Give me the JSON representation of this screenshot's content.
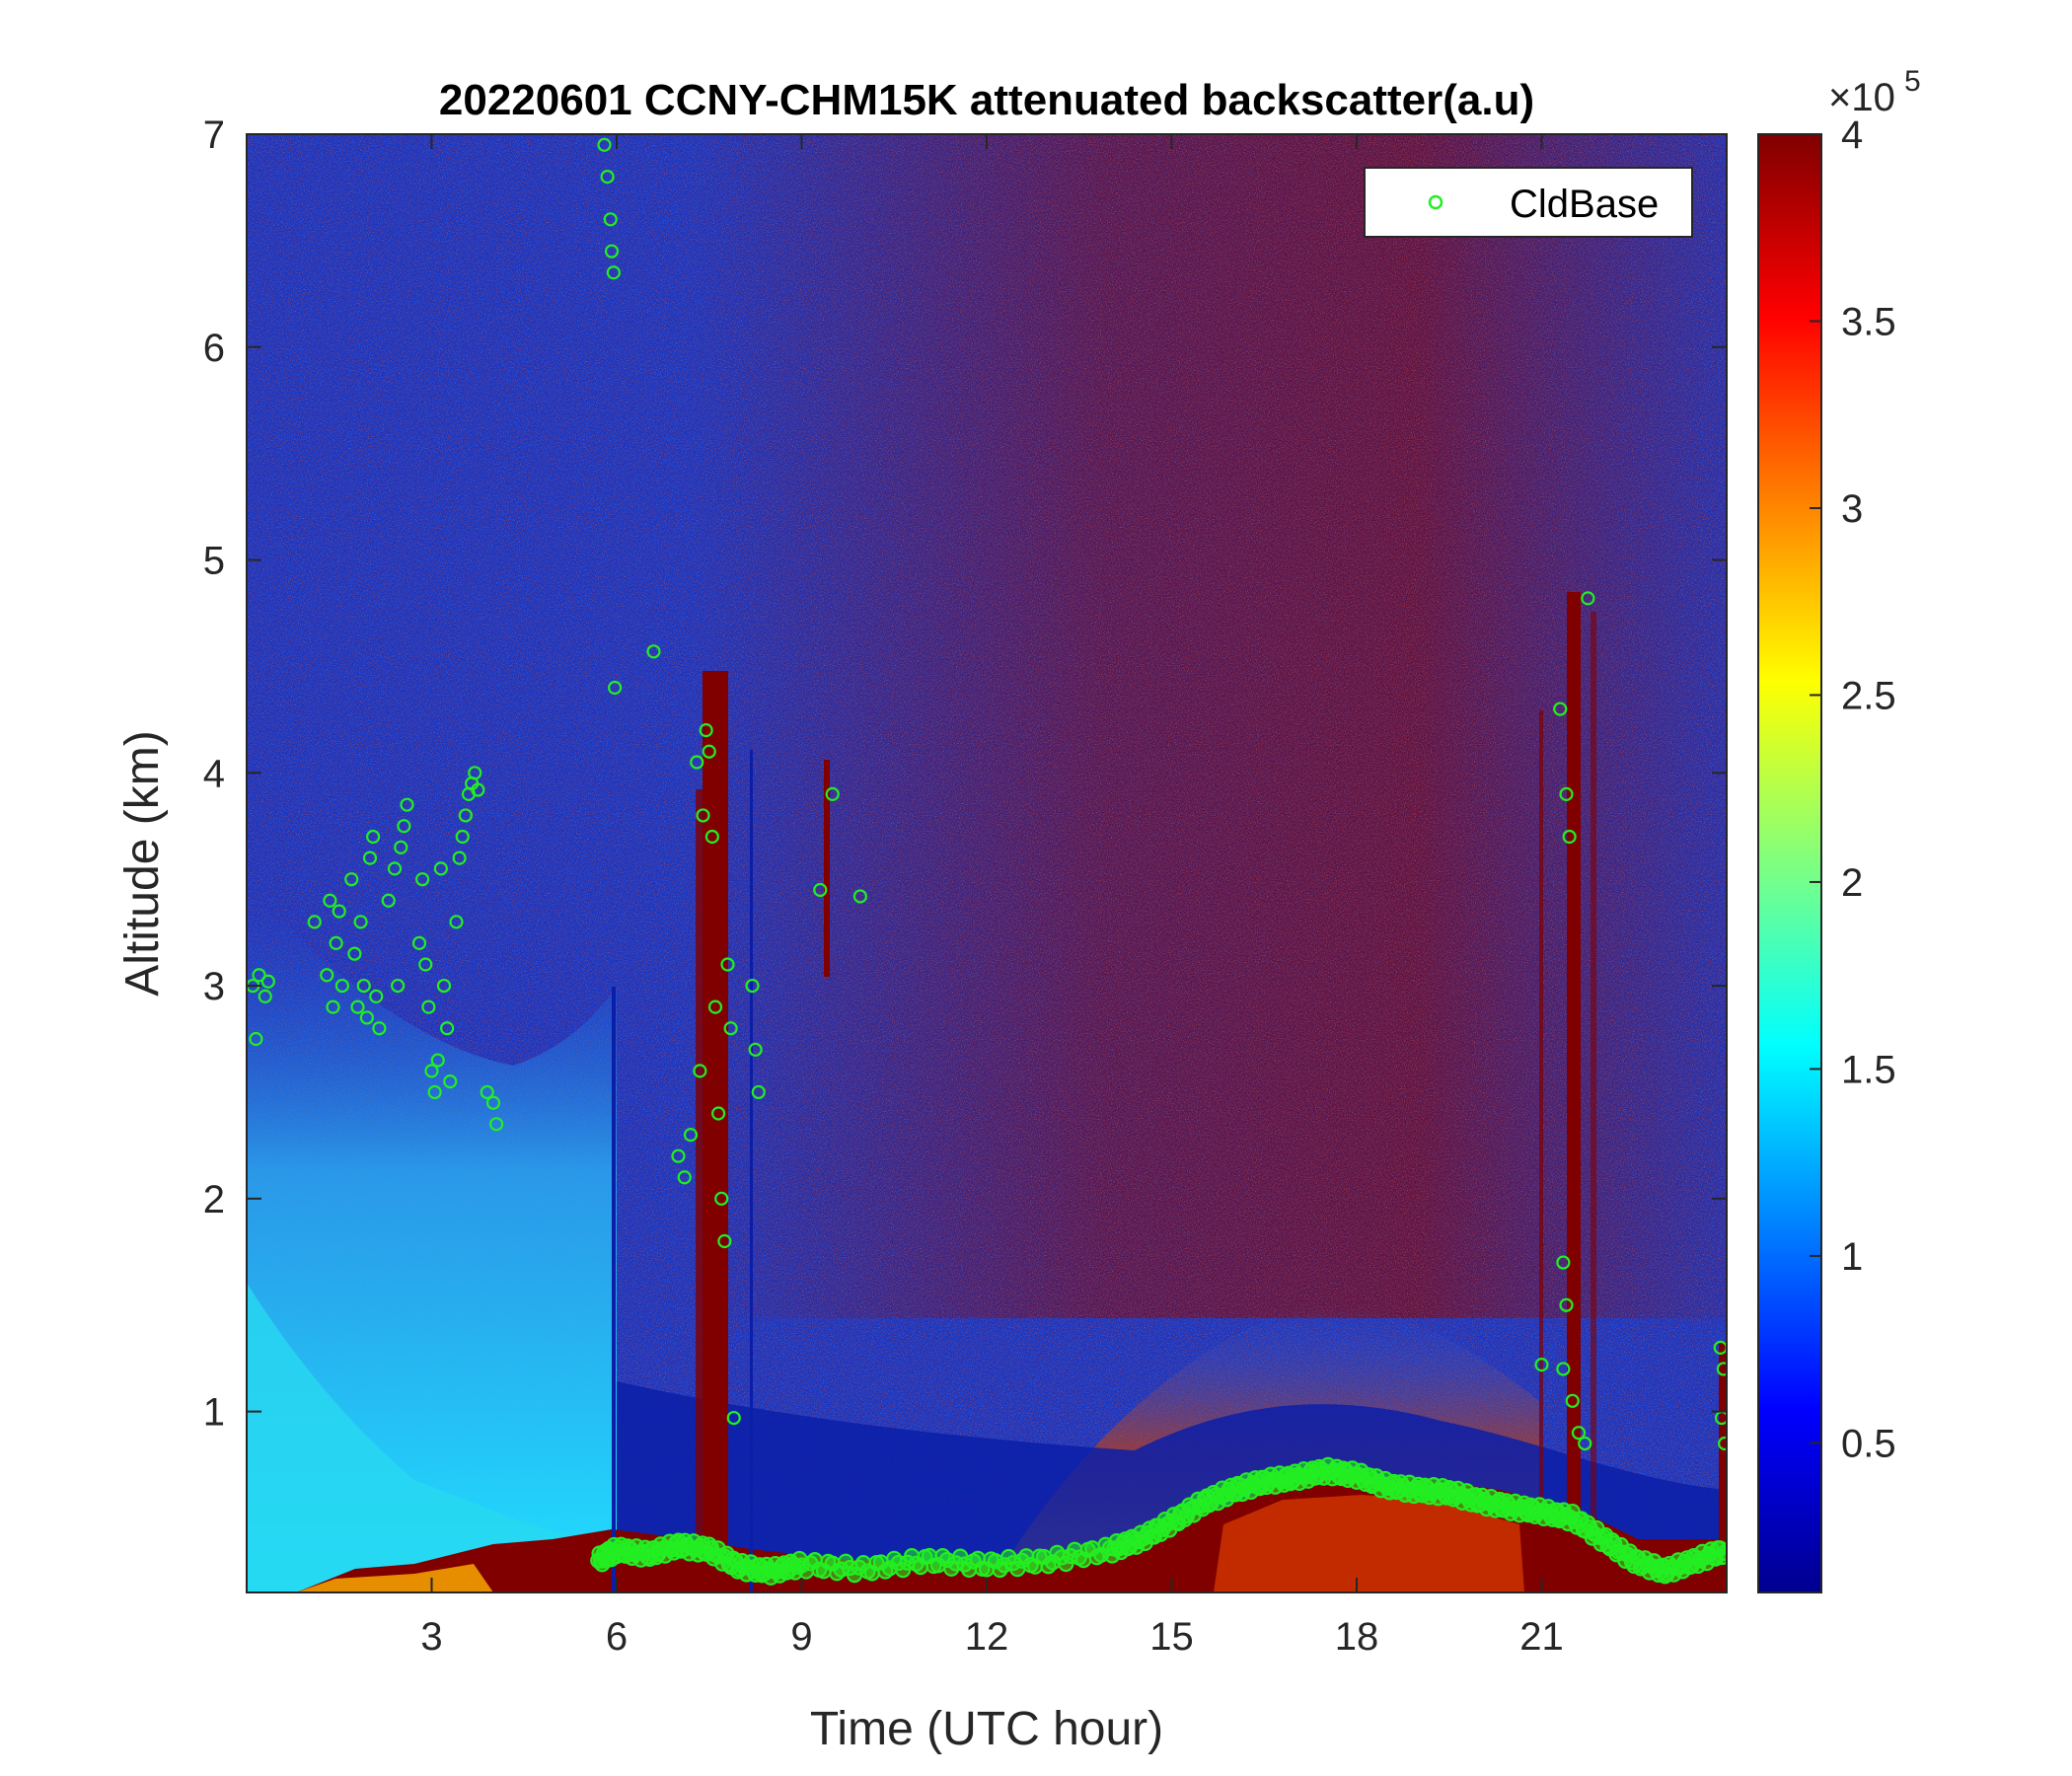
{
  "chart_data": {
    "type": "heatmap",
    "title": "20220601 CCNY-CHM15K attenuated backscatter(a.u)",
    "xlabel": "Time (UTC hour)",
    "ylabel": "Altitude (km)",
    "xlim": [
      0,
      24
    ],
    "ylim": [
      0.15,
      7
    ],
    "xticks": [
      3,
      6,
      9,
      12,
      15,
      18,
      21
    ],
    "yticks": [
      1,
      2,
      3,
      4,
      5,
      6,
      7
    ],
    "colorbar": {
      "colormap": "jet",
      "clim": [
        0.1,
        4
      ],
      "ticks": [
        0.5,
        1,
        1.5,
        2,
        2.5,
        3,
        3.5,
        4
      ],
      "exponent_label": "×10",
      "exponent": "5"
    },
    "legend": {
      "location": "top-right",
      "entries": [
        "CldBase"
      ]
    },
    "colors": {
      "cldbase_marker": "#22ee22"
    },
    "series": [
      {
        "name": "CldBase",
        "marker": "circle",
        "points": [
          [
            0.1,
            3.0
          ],
          [
            0.15,
            2.75
          ],
          [
            0.2,
            3.05
          ],
          [
            0.3,
            2.95
          ],
          [
            0.35,
            3.02
          ],
          [
            1.1,
            3.3
          ],
          [
            1.3,
            3.05
          ],
          [
            1.35,
            3.4
          ],
          [
            1.4,
            2.9
          ],
          [
            1.45,
            3.2
          ],
          [
            1.5,
            3.35
          ],
          [
            1.55,
            3.0
          ],
          [
            1.7,
            3.5
          ],
          [
            1.75,
            3.15
          ],
          [
            1.8,
            2.9
          ],
          [
            1.85,
            3.3
          ],
          [
            1.9,
            3.0
          ],
          [
            1.95,
            2.85
          ],
          [
            2.0,
            3.6
          ],
          [
            2.05,
            3.7
          ],
          [
            2.1,
            2.95
          ],
          [
            2.15,
            2.8
          ],
          [
            2.3,
            3.4
          ],
          [
            2.4,
            3.55
          ],
          [
            2.45,
            3.0
          ],
          [
            2.5,
            3.65
          ],
          [
            2.55,
            3.75
          ],
          [
            2.6,
            3.85
          ],
          [
            2.8,
            3.2
          ],
          [
            2.85,
            3.5
          ],
          [
            2.9,
            3.1
          ],
          [
            2.95,
            2.9
          ],
          [
            3.0,
            2.6
          ],
          [
            3.05,
            2.5
          ],
          [
            3.1,
            2.65
          ],
          [
            3.15,
            3.55
          ],
          [
            3.2,
            3.0
          ],
          [
            3.25,
            2.8
          ],
          [
            3.3,
            2.55
          ],
          [
            3.4,
            3.3
          ],
          [
            3.45,
            3.6
          ],
          [
            3.5,
            3.7
          ],
          [
            3.55,
            3.8
          ],
          [
            3.6,
            3.9
          ],
          [
            3.65,
            3.95
          ],
          [
            3.7,
            4.0
          ],
          [
            3.75,
            3.92
          ],
          [
            3.9,
            2.5
          ],
          [
            4.0,
            2.45
          ],
          [
            4.05,
            2.35
          ],
          [
            5.8,
            6.95
          ],
          [
            5.85,
            6.8
          ],
          [
            5.9,
            6.6
          ],
          [
            5.92,
            6.45
          ],
          [
            5.95,
            6.35
          ],
          [
            5.97,
            4.4
          ],
          [
            6.6,
            4.57
          ],
          [
            7.0,
            2.2
          ],
          [
            7.1,
            2.1
          ],
          [
            7.2,
            2.3
          ],
          [
            7.3,
            4.05
          ],
          [
            7.35,
            2.6
          ],
          [
            7.4,
            3.8
          ],
          [
            7.45,
            4.2
          ],
          [
            7.5,
            4.1
          ],
          [
            7.55,
            3.7
          ],
          [
            7.6,
            2.9
          ],
          [
            7.65,
            2.4
          ],
          [
            7.7,
            2.0
          ],
          [
            7.75,
            1.8
          ],
          [
            7.8,
            3.1
          ],
          [
            7.85,
            2.8
          ],
          [
            7.9,
            0.97
          ],
          [
            8.2,
            3.0
          ],
          [
            8.25,
            2.7
          ],
          [
            8.3,
            2.5
          ],
          [
            9.5,
            3.9
          ],
          [
            9.3,
            3.45
          ],
          [
            9.95,
            3.42
          ],
          [
            21.3,
            4.3
          ],
          [
            21.4,
            3.9
          ],
          [
            21.45,
            3.7
          ],
          [
            21.35,
            1.7
          ],
          [
            21.4,
            1.5
          ],
          [
            21.35,
            1.2
          ],
          [
            21.5,
            1.05
          ],
          [
            21.6,
            0.9
          ],
          [
            21.7,
            0.85
          ],
          [
            21.75,
            4.82
          ],
          [
            21.0,
            1.22
          ],
          [
            23.9,
            1.3
          ],
          [
            23.95,
            1.2
          ],
          [
            23.92,
            0.97
          ],
          [
            23.97,
            0.85
          ]
        ],
        "boundary_layer": {
          "x": [
            5.7,
            6.0,
            6.5,
            7.0,
            7.5,
            8.0,
            8.5,
            9.0,
            10.0,
            11.0,
            12.0,
            13.0,
            14.0,
            14.5,
            15.0,
            15.5,
            16.0,
            16.5,
            17.0,
            17.5,
            18.0,
            18.5,
            19.0,
            19.5,
            20.0,
            20.5,
            21.0,
            21.5,
            22.0,
            22.5,
            23.0,
            23.5,
            24.0
          ],
          "y": [
            0.3,
            0.35,
            0.33,
            0.37,
            0.35,
            0.27,
            0.25,
            0.28,
            0.26,
            0.3,
            0.28,
            0.3,
            0.35,
            0.4,
            0.48,
            0.57,
            0.63,
            0.67,
            0.69,
            0.72,
            0.7,
            0.65,
            0.63,
            0.62,
            0.58,
            0.55,
            0.53,
            0.5,
            0.4,
            0.3,
            0.25,
            0.3,
            0.35
          ]
        }
      }
    ]
  }
}
